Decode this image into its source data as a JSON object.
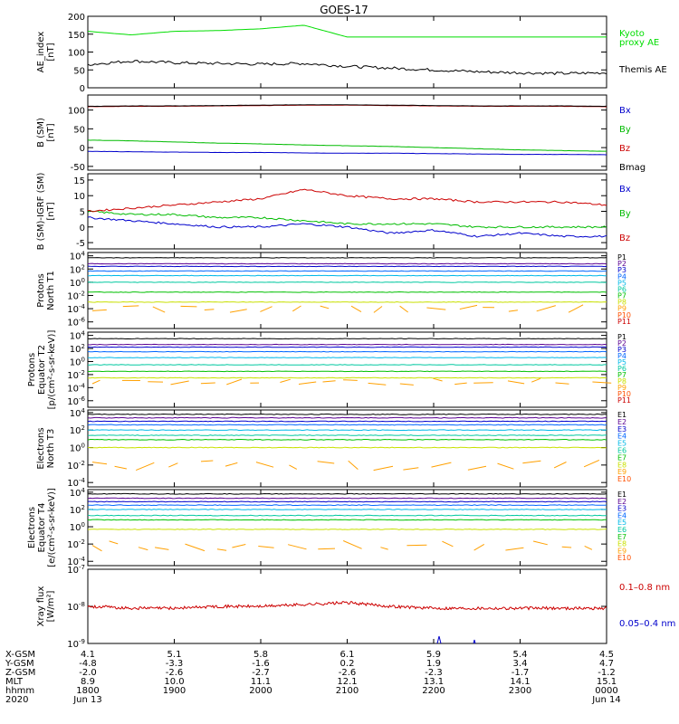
{
  "title": "GOES-17",
  "panels": [
    {
      "id": "ae",
      "ylabel": [
        "AE_index",
        "[nT]"
      ],
      "yscale": "linear",
      "ylim": [
        0,
        200
      ],
      "yticks": [
        "0",
        "50",
        "100",
        "150",
        "200"
      ],
      "legend": [
        {
          "text": "Kyoto",
          "color": "#00dd00"
        },
        {
          "text": "proxy AE",
          "color": "#00dd00"
        },
        {
          "text": "Themis AE",
          "color": "#000000"
        }
      ]
    },
    {
      "id": "bsm",
      "ylabel": [
        "B (SM)",
        "[nT]"
      ],
      "yscale": "linear",
      "ylim": [
        -60,
        140
      ],
      "yticks": [
        "-50",
        "0",
        "50",
        "100"
      ],
      "legend": [
        {
          "text": "Bx",
          "color": "#0000cc"
        },
        {
          "text": "By",
          "color": "#00bb00"
        },
        {
          "text": "Bz",
          "color": "#cc0000"
        },
        {
          "text": "Bmag",
          "color": "#000000"
        }
      ]
    },
    {
      "id": "bigrf",
      "ylabel": [
        "B (SM)-IGRF (SM)",
        "[nT]"
      ],
      "yscale": "linear",
      "ylim": [
        -7,
        17
      ],
      "yticks": [
        "-5",
        "0",
        "5",
        "10",
        "15"
      ],
      "legend": [
        {
          "text": "Bx",
          "color": "#0000cc"
        },
        {
          "text": "By",
          "color": "#00bb00"
        },
        {
          "text": "Bz",
          "color": "#cc0000"
        }
      ]
    },
    {
      "id": "pt1",
      "ylabel": [
        "Protons",
        "North T1"
      ],
      "yscale": "log",
      "ylim": [
        -7,
        4.5
      ],
      "yticks": [
        "10^4",
        "10^2",
        "10^0",
        "10^-2",
        "10^-4",
        "10^-6"
      ],
      "channels": [
        "P1",
        "P2",
        "P3",
        "P4",
        "P5",
        "P6",
        "P7",
        "P8",
        "P9",
        "P10",
        "P11"
      ]
    },
    {
      "id": "pt2",
      "ylabel": [
        "Protons",
        "Equator T2",
        "[p/(cm²-s-sr-keV)]"
      ],
      "yscale": "log",
      "ylim": [
        -7,
        4.5
      ],
      "yticks": [
        "10^4",
        "10^2",
        "10^0",
        "10^-2",
        "10^-4",
        "10^-6"
      ],
      "channels": [
        "P1",
        "P2",
        "P3",
        "P4",
        "P5",
        "P6",
        "P7",
        "P8",
        "P9",
        "P10",
        "P11"
      ]
    },
    {
      "id": "et3",
      "ylabel": [
        "Electrons",
        "North T3"
      ],
      "yscale": "log",
      "ylim": [
        -4.5,
        4.3
      ],
      "yticks": [
        "10^4",
        "10^2",
        "10^0",
        "10^-2",
        "10^-4"
      ],
      "channels": [
        "E1",
        "E2",
        "E3",
        "E4",
        "E5",
        "E6",
        "E7",
        "E8",
        "E9",
        "E10"
      ]
    },
    {
      "id": "et4",
      "ylabel": [
        "Electrons",
        "Equator T4",
        "[e/(cm²-s-sr-keV)]"
      ],
      "yscale": "log",
      "ylim": [
        -4.5,
        4.3
      ],
      "yticks": [
        "10^4",
        "10^2",
        "10^0",
        "10^-2",
        "10^-4"
      ],
      "channels": [
        "E1",
        "E2",
        "E3",
        "E4",
        "E5",
        "E6",
        "E7",
        "E8",
        "E9",
        "E10"
      ]
    },
    {
      "id": "xray",
      "ylabel": [
        "Xray  flux",
        "[W/m²]"
      ],
      "yscale": "log",
      "ylim": [
        -9,
        -7
      ],
      "yticks": [
        "10^-7",
        "10^-8",
        "10^-9"
      ],
      "legend": [
        {
          "text": "0.1–0.8 nm",
          "color": "#cc0000"
        },
        {
          "text": "0.05–0.4 nm",
          "color": "#0000cc"
        }
      ]
    }
  ],
  "channel_colors": [
    "#000000",
    "#5a0090",
    "#0000cc",
    "#0066ff",
    "#00b8e8",
    "#00c8a0",
    "#00c000",
    "#c8e000",
    "#ffa000",
    "#ff5000",
    "#cc0000"
  ],
  "xaxis": {
    "row_labels": [
      "X-GSM",
      "Y-GSM",
      "Z-GSM",
      "MLT",
      "hhmm",
      "2020"
    ],
    "columns": [
      {
        "values": [
          "4.1",
          "-4.8",
          "-2.0",
          "8.9",
          "1800",
          "Jun 13"
        ]
      },
      {
        "values": [
          "5.1",
          "-3.3",
          "-2.6",
          "10.0",
          "1900",
          ""
        ]
      },
      {
        "values": [
          "5.8",
          "-1.6",
          "-2.7",
          "11.1",
          "2000",
          ""
        ]
      },
      {
        "values": [
          "6.1",
          "0.2",
          "-2.6",
          "12.1",
          "2100",
          ""
        ]
      },
      {
        "values": [
          "5.9",
          "1.9",
          "-2.3",
          "13.1",
          "2200",
          ""
        ]
      },
      {
        "values": [
          "5.4",
          "3.4",
          "-1.7",
          "14.1",
          "2300",
          ""
        ]
      },
      {
        "values": [
          "4.5",
          "4.7",
          "-1.2",
          "15.1",
          "0000",
          "Jun 14"
        ]
      }
    ]
  },
  "chart_data": {
    "type": "line",
    "title": "GOES-17",
    "x": [
      "1800",
      "1900",
      "2000",
      "2100",
      "2200",
      "2300",
      "0000"
    ],
    "series_by_panel": [
      {
        "panel": "ae",
        "series": [
          {
            "name": "Kyoto proxy AE",
            "values": [
              158,
              148,
              158,
              160,
              165,
              175,
              142,
              142,
              142,
              142,
              142,
              142,
              142
            ]
          },
          {
            "name": "Themis AE",
            "values": [
              65,
              75,
              70,
              68,
              66,
              68,
              60,
              55,
              50,
              45,
              42,
              40,
              42
            ]
          }
        ]
      },
      {
        "panel": "bsm",
        "series": [
          {
            "name": "Bx",
            "values": [
              -10,
              -11,
              -12,
              -13,
              -13,
              -14,
              -15,
              -15,
              -16,
              -17,
              -18,
              -18,
              -19
            ]
          },
          {
            "name": "By",
            "values": [
              20,
              18,
              15,
              12,
              10,
              7,
              5,
              3,
              0,
              -3,
              -6,
              -8,
              -10
            ]
          },
          {
            "name": "Bz",
            "values": [
              109,
              110,
              110,
              111,
              112,
              113,
              113,
              112,
              111,
              110,
              110,
              110,
              109
            ]
          },
          {
            "name": "Bmag",
            "values": [
              110,
              111,
              111,
              112,
              113,
              114,
              114,
              113,
              112,
              111,
              111,
              111,
              110
            ]
          }
        ]
      },
      {
        "panel": "bigrf",
        "series": [
          {
            "name": "Bx",
            "values": [
              3,
              2,
              1,
              0,
              0,
              1,
              0,
              -2,
              -1,
              -3,
              -2,
              -3,
              -3
            ]
          },
          {
            "name": "By",
            "values": [
              5,
              4,
              4,
              3,
              3,
              2,
              1,
              1,
              1,
              0,
              0,
              0,
              0
            ]
          },
          {
            "name": "Bz",
            "values": [
              5,
              6,
              7,
              8,
              9,
              12,
              10,
              9,
              9,
              8,
              8,
              8,
              7
            ]
          }
        ]
      },
      {
        "panel": "pt1",
        "series": [
          {
            "name": "P1",
            "log10": 3.7
          },
          {
            "name": "P2",
            "log10": 2.8
          },
          {
            "name": "P3",
            "log10": 2.4
          },
          {
            "name": "P4",
            "log10": 1.7
          },
          {
            "name": "P5",
            "log10": 1.0
          },
          {
            "name": "P6",
            "log10": 0.0
          },
          {
            "name": "P7",
            "log10": -1.5
          },
          {
            "name": "P8",
            "log10": -3.0
          },
          {
            "name": "P9",
            "log10": -4.0
          }
        ]
      },
      {
        "panel": "pt2",
        "series": [
          {
            "name": "P1",
            "log10": 3.5
          },
          {
            "name": "P2",
            "log10": 2.6
          },
          {
            "name": "P3",
            "log10": 2.2
          },
          {
            "name": "P4",
            "log10": 1.5
          },
          {
            "name": "P5",
            "log10": 0.6
          },
          {
            "name": "P6",
            "log10": -0.5
          },
          {
            "name": "P7",
            "log10": -1.5
          },
          {
            "name": "P8",
            "log10": -2.5
          },
          {
            "name": "P9",
            "log10": -3.0
          }
        ]
      },
      {
        "panel": "et3",
        "series": [
          {
            "name": "E1",
            "log10": 3.8
          },
          {
            "name": "E2",
            "log10": 3.4
          },
          {
            "name": "E3",
            "log10": 3.0
          },
          {
            "name": "E4",
            "log10": 2.6
          },
          {
            "name": "E5",
            "log10": 2.0
          },
          {
            "name": "E6",
            "log10": 1.4
          },
          {
            "name": "E7",
            "log10": 0.9
          },
          {
            "name": "E8",
            "log10": 0.0
          },
          {
            "name": "E9",
            "log10": -2.0
          }
        ]
      },
      {
        "panel": "et4",
        "series": [
          {
            "name": "E1",
            "log10": 3.8
          },
          {
            "name": "E2",
            "log10": 3.3
          },
          {
            "name": "E3",
            "log10": 2.9
          },
          {
            "name": "E4",
            "log10": 2.5
          },
          {
            "name": "E5",
            "log10": 2.0
          },
          {
            "name": "E6",
            "log10": 1.3
          },
          {
            "name": "E7",
            "log10": 0.8
          },
          {
            "name": "E8",
            "log10": -0.3
          },
          {
            "name": "E9",
            "log10": -2.2
          }
        ]
      },
      {
        "panel": "xray",
        "series": [
          {
            "name": "0.1–0.8 nm",
            "log10_values": [
              -8.0,
              -8.05,
              -8.05,
              -8.0,
              -8.0,
              -7.95,
              -7.9,
              -8.0,
              -8.05,
              -8.05,
              -8.05,
              -8.05,
              -8.05
            ]
          },
          {
            "name": "0.05–0.4 nm",
            "log10_values": null
          }
        ]
      }
    ]
  }
}
